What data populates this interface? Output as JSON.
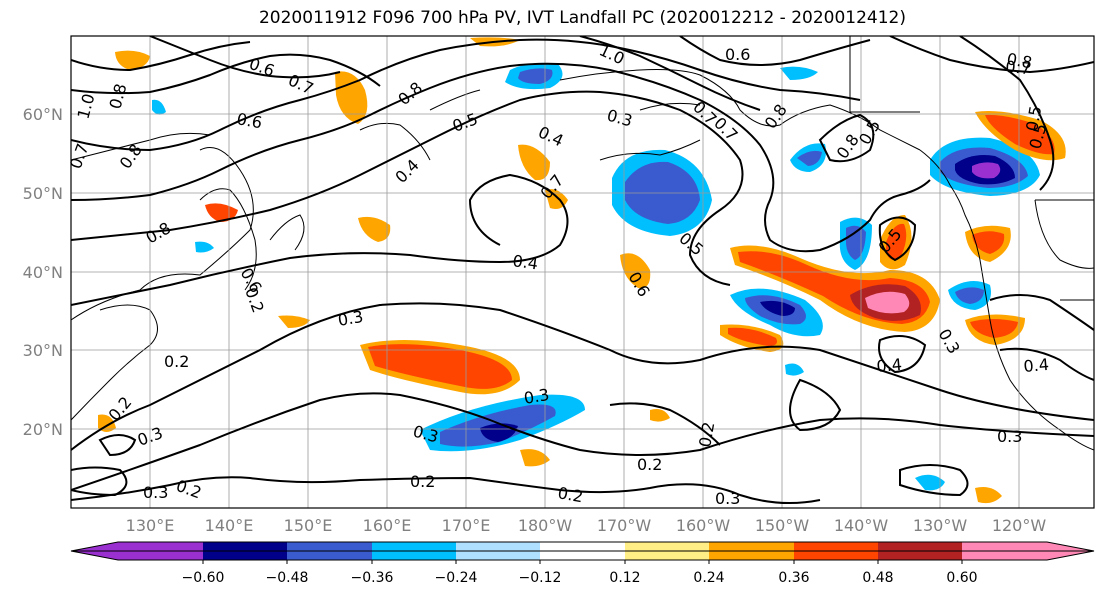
{
  "title": "2020011912 F096 700 hPa PV, IVT Landfall PC (2020012212 - 2020012412)",
  "lat_labels": [
    "60°N",
    "50°N",
    "40°N",
    "30°N",
    "20°N"
  ],
  "lon_labels": [
    "130°E",
    "140°E",
    "150°E",
    "160°E",
    "170°E",
    "180°W",
    "170°W",
    "160°W",
    "150°W",
    "140°W",
    "130°W",
    "120°W"
  ],
  "contour_labels": [
    "0.6",
    "0.7",
    "0.8",
    "1.0",
    "0.6",
    "0.7",
    "0.8",
    "1.0",
    "0.6",
    "0.8",
    "0.8",
    "0.7",
    "0.8",
    "0.5",
    "0.4",
    "0.3",
    "0.4",
    "0.5",
    "0.7",
    "0.6",
    "0.7",
    "0.7",
    "0.8",
    "0.8",
    "0.5",
    "0.4",
    "0.4",
    "0.5",
    "0.6",
    "0.3",
    "0.3",
    "0.2",
    "0.3",
    "0.2",
    "0.3",
    "0.2",
    "0.3",
    "0.2",
    "0.3",
    "0.2",
    "0.2",
    "0.3",
    "0.2",
    "0.4",
    "0.5",
    "0.3",
    "0.2",
    "0.5"
  ],
  "colorbar": {
    "colors": [
      "#9b30d0",
      "#00008b",
      "#3a5bd0",
      "#00bfff",
      "#b0e0ff",
      "#ffffff",
      "#ffed85",
      "#ffa500",
      "#ff4500",
      "#b22222",
      "#ff88b6"
    ],
    "tick_labels": [
      "−0.60",
      "−0.48",
      "−0.36",
      "−0.24",
      "−0.12",
      "0.12",
      "0.24",
      "0.36",
      "0.48",
      "0.60"
    ]
  },
  "colors": {
    "frame": "#000000",
    "grid": "#9a9a9a",
    "tick_text": "#808080"
  }
}
